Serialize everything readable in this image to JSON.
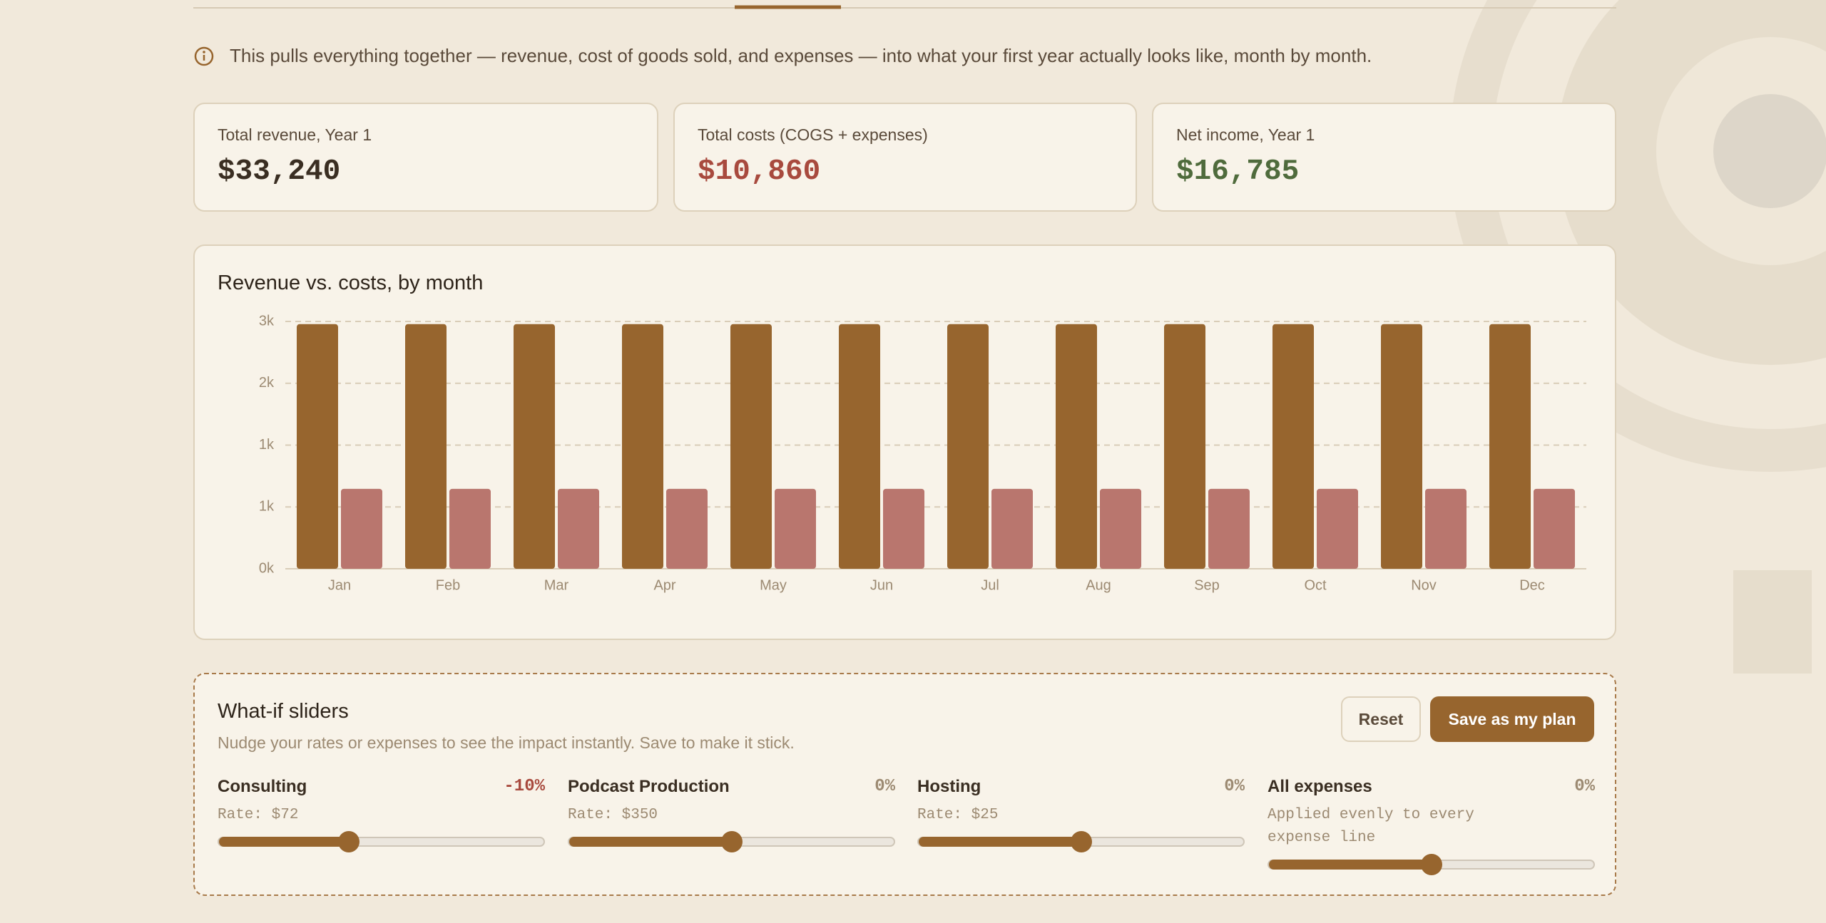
{
  "intro": "This pulls everything together — revenue, cost of goods sold, and expenses — into what your first year actually looks like, month by month.",
  "summary": [
    {
      "label": "Total revenue, Year 1",
      "amount": "$33,240"
    },
    {
      "label": "Total costs (COGS + expenses)",
      "amount": "$10,860"
    },
    {
      "label": "Net income, Year 1",
      "amount": "$16,785"
    }
  ],
  "chart_data": {
    "type": "bar",
    "title": "Revenue vs. costs, by month",
    "categories": [
      "Jan",
      "Feb",
      "Mar",
      "Apr",
      "May",
      "Jun",
      "Jul",
      "Aug",
      "Sep",
      "Oct",
      "Nov",
      "Dec"
    ],
    "series": [
      {
        "name": "Revenue",
        "color": "#97652e",
        "values": [
          2770,
          2770,
          2770,
          2770,
          2770,
          2770,
          2770,
          2770,
          2770,
          2770,
          2770,
          2770
        ]
      },
      {
        "name": "Costs",
        "color": "#b9766e",
        "values": [
          905,
          905,
          905,
          905,
          905,
          905,
          905,
          905,
          905,
          905,
          905,
          905
        ]
      }
    ],
    "ylim": [
      0,
      2800
    ],
    "yticks": [
      {
        "value": 0,
        "label": "0k"
      },
      {
        "value": 700,
        "label": "1k"
      },
      {
        "value": 1400,
        "label": "1k"
      },
      {
        "value": 2100,
        "label": "2k"
      },
      {
        "value": 2800,
        "label": "3k"
      }
    ],
    "grid": true
  },
  "whatif": {
    "title": "What-if sliders",
    "subtitle": "Nudge your rates or expenses to see the impact instantly. Save to make it stick.",
    "buttons": [
      "Reset",
      "Save as my plan"
    ],
    "slider_range": [
      -50,
      50
    ],
    "sliders": [
      {
        "name": "Consulting",
        "value": -10,
        "value_label": "-10%",
        "detail": "Rate: $72"
      },
      {
        "name": "Podcast Production",
        "value": 0,
        "value_label": "0%",
        "detail": "Rate: $350"
      },
      {
        "name": "Hosting",
        "value": 0,
        "value_label": "0%",
        "detail": "Rate: $25"
      },
      {
        "name": "All expenses",
        "value": 0,
        "value_label": "0%",
        "detail": "Applied evenly to every expense line"
      }
    ]
  }
}
